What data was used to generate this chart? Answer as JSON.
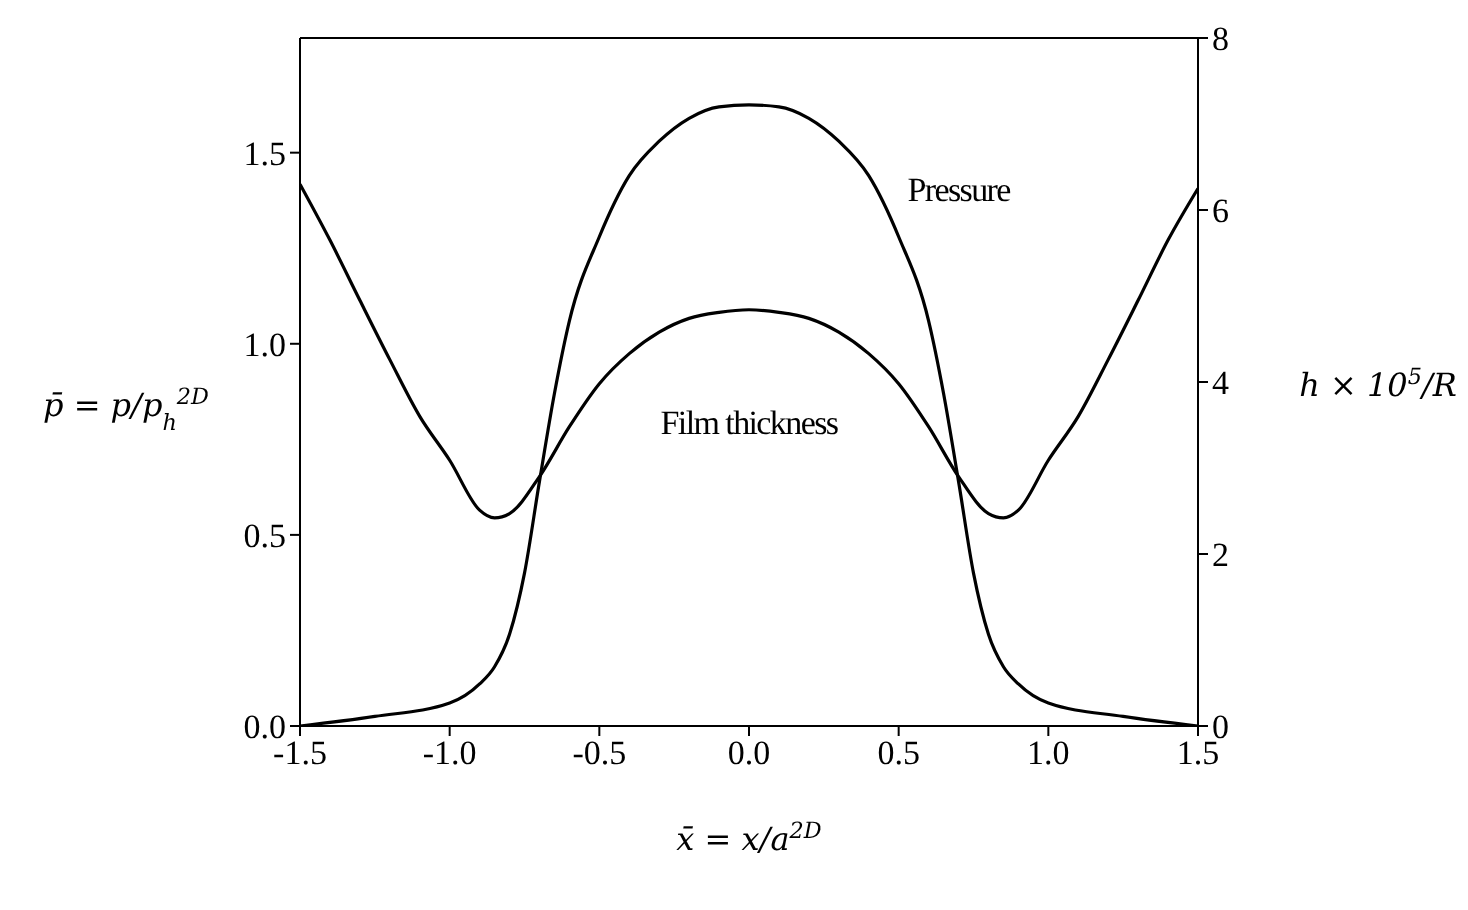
{
  "chart_data": {
    "type": "line",
    "xlabel": "x̄ = x/a$^{2D}$",
    "ylabel": "p̄ = p/p$_{h}$$^{2D}$",
    "y2label": "h × 10$^{5}$/R",
    "series": [
      {
        "name": "Pressure",
        "color": "#000000",
        "x": [
          -1.5,
          -1.25,
          -1.0,
          -0.9,
          -0.85,
          -0.8,
          -0.75,
          -0.7,
          -0.65,
          -0.6,
          -0.5,
          -0.4,
          -0.3,
          -0.2,
          -0.1,
          0,
          0.1,
          0.2,
          0.3,
          0.4,
          0.5,
          0.6,
          0.65,
          0.7,
          0.75,
          0.8,
          0.85,
          0.9,
          1.0,
          1.25,
          1.5
        ],
        "values": [
          0.0,
          0.025,
          0.06,
          0.11,
          0.155,
          0.24,
          0.4,
          0.64,
          0.87,
          1.06,
          1.28,
          1.44,
          1.53,
          1.59,
          1.62,
          1.625,
          1.62,
          1.59,
          1.53,
          1.44,
          1.28,
          1.06,
          0.87,
          0.64,
          0.4,
          0.24,
          0.155,
          0.11,
          0.06,
          0.025,
          0.0
        ]
      },
      {
        "name": "Film thickness",
        "color": "#000000",
        "axis": "y2",
        "x": [
          -1.5,
          -1.4,
          -1.3,
          -1.2,
          -1.1,
          -1.0,
          -0.9,
          -0.85,
          -0.8,
          -0.7,
          -0.6,
          -0.5,
          -0.4,
          -0.3,
          -0.2,
          -0.1,
          0,
          0.1,
          0.2,
          0.3,
          0.4,
          0.5,
          0.6,
          0.7,
          0.8,
          0.85,
          0.9,
          1.0,
          1.1,
          1.2,
          1.3,
          1.4,
          1.5
        ],
        "values": [
          6.3,
          5.65,
          4.95,
          4.26,
          3.6,
          3.09,
          2.51,
          2.42,
          2.47,
          2.9,
          3.48,
          3.98,
          4.33,
          4.58,
          4.74,
          4.81,
          4.84,
          4.81,
          4.74,
          4.58,
          4.33,
          3.98,
          3.48,
          2.9,
          2.47,
          2.42,
          2.51,
          3.09,
          3.6,
          4.26,
          4.95,
          5.65,
          6.25
        ]
      }
    ],
    "xlim": [
      -1.5,
      1.5
    ],
    "xticks": [
      {
        "value": -1.5,
        "label": "-1.5"
      },
      {
        "value": -1,
        "label": "-1.0"
      },
      {
        "value": -0.5,
        "label": "-0.5"
      },
      {
        "value": 0,
        "label": "0.0"
      },
      {
        "value": 0.5,
        "label": "0.5"
      },
      {
        "value": 1,
        "label": "1.0"
      },
      {
        "value": 1.5,
        "label": "1.5"
      }
    ],
    "ylim": [
      0,
      1.8
    ],
    "yticks": [
      {
        "value": 0,
        "label": "0.0"
      },
      {
        "value": 0.5,
        "label": "0.5"
      },
      {
        "value": 1,
        "label": "1.0"
      },
      {
        "value": 1.5,
        "label": "1.5"
      }
    ],
    "y2lim": [
      0,
      8
    ],
    "y2ticks": [
      0,
      2,
      4,
      6,
      8
    ],
    "grid": false,
    "legend": false,
    "marker": "none",
    "line_style": "solid"
  }
}
